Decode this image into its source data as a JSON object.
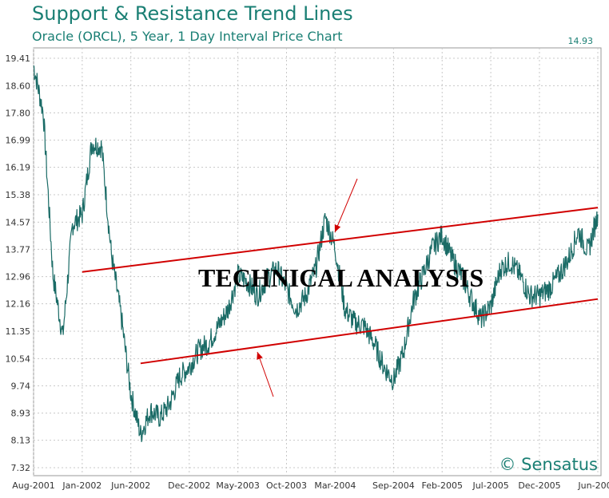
{
  "chart_data": {
    "type": "line",
    "title": "Support & Resistance Trend Lines",
    "subtitle": "Oracle (ORCL), 5 Year, 1 Day Interval Price Chart",
    "last_value": "14.93",
    "y_ticks": [
      "19.41",
      "18.60",
      "17.80",
      "16.99",
      "16.19",
      "15.38",
      "14.57",
      "13.77",
      "12.96",
      "12.16",
      "11.35",
      "10.54",
      "9.74",
      "8.93",
      "8.13",
      "7.32"
    ],
    "ylim": [
      7.32,
      19.41
    ],
    "x_ticks": [
      "Aug-2001",
      "Jan-2002",
      "Jun-2002",
      "Dec-2002",
      "May-2003",
      "Oct-2003",
      "Mar-2004",
      "Sep-2004",
      "Feb-2005",
      "Jul-2005",
      "Dec-2005",
      "Jun-2006"
    ],
    "grid": true,
    "series": [
      {
        "color": "#1a6b66",
        "x": [
          "Aug-2001",
          "Sep-2001",
          "Oct-2001",
          "Nov-2001",
          "Dec-2001",
          "Jan-2002",
          "Feb-2002",
          "Mar-2002",
          "Apr-2002",
          "May-2002",
          "Jun-2002",
          "Jul-2002",
          "Aug-2002",
          "Sep-2002",
          "Oct-2002",
          "Nov-2002",
          "Dec-2002",
          "Jan-2003",
          "Feb-2003",
          "Mar-2003",
          "Apr-2003",
          "May-2003",
          "Jun-2003",
          "Jul-2003",
          "Aug-2003",
          "Sep-2003",
          "Oct-2003",
          "Nov-2003",
          "Dec-2003",
          "Jan-2004",
          "Feb-2004",
          "Mar-2004",
          "Apr-2004",
          "May-2004",
          "Jun-2004",
          "Jul-2004",
          "Aug-2004",
          "Sep-2004",
          "Oct-2004",
          "Nov-2004",
          "Dec-2004",
          "Jan-2005",
          "Feb-2005",
          "Mar-2005",
          "Apr-2005",
          "May-2005",
          "Jun-2005",
          "Jul-2005",
          "Aug-2005",
          "Sep-2005",
          "Oct-2005",
          "Nov-2005",
          "Dec-2005",
          "Jan-2006",
          "Feb-2006",
          "Mar-2006",
          "Apr-2006",
          "May-2006",
          "Jun-2006"
        ],
        "values": [
          19.2,
          17.8,
          13.0,
          11.2,
          14.5,
          14.8,
          16.9,
          16.8,
          13.6,
          11.8,
          9.5,
          8.3,
          9.0,
          8.8,
          9.2,
          10.0,
          10.3,
          10.8,
          11.0,
          11.5,
          12.0,
          13.0,
          12.8,
          12.4,
          12.9,
          13.2,
          12.6,
          12.0,
          12.4,
          13.2,
          14.7,
          13.8,
          12.0,
          11.6,
          11.5,
          11.0,
          10.3,
          9.9,
          10.7,
          12.2,
          13.0,
          13.8,
          14.2,
          13.5,
          13.0,
          12.3,
          11.7,
          12.1,
          13.2,
          13.4,
          13.0,
          12.4,
          12.4,
          12.6,
          13.0,
          13.5,
          14.3,
          13.7,
          14.8
        ]
      }
    ],
    "trend_lines": [
      {
        "role": "resistance",
        "color": "#d10000",
        "start": [
          "Jan-2002",
          13.1
        ],
        "end": [
          "Jun-2006",
          15.0
        ]
      },
      {
        "role": "support",
        "color": "#d10000",
        "start": [
          "Jul-2002",
          10.4
        ],
        "end": [
          "Jun-2006",
          12.3
        ]
      }
    ],
    "annotation": "TECHNICAL ANALYSIS",
    "watermark": "© Sensatus"
  }
}
